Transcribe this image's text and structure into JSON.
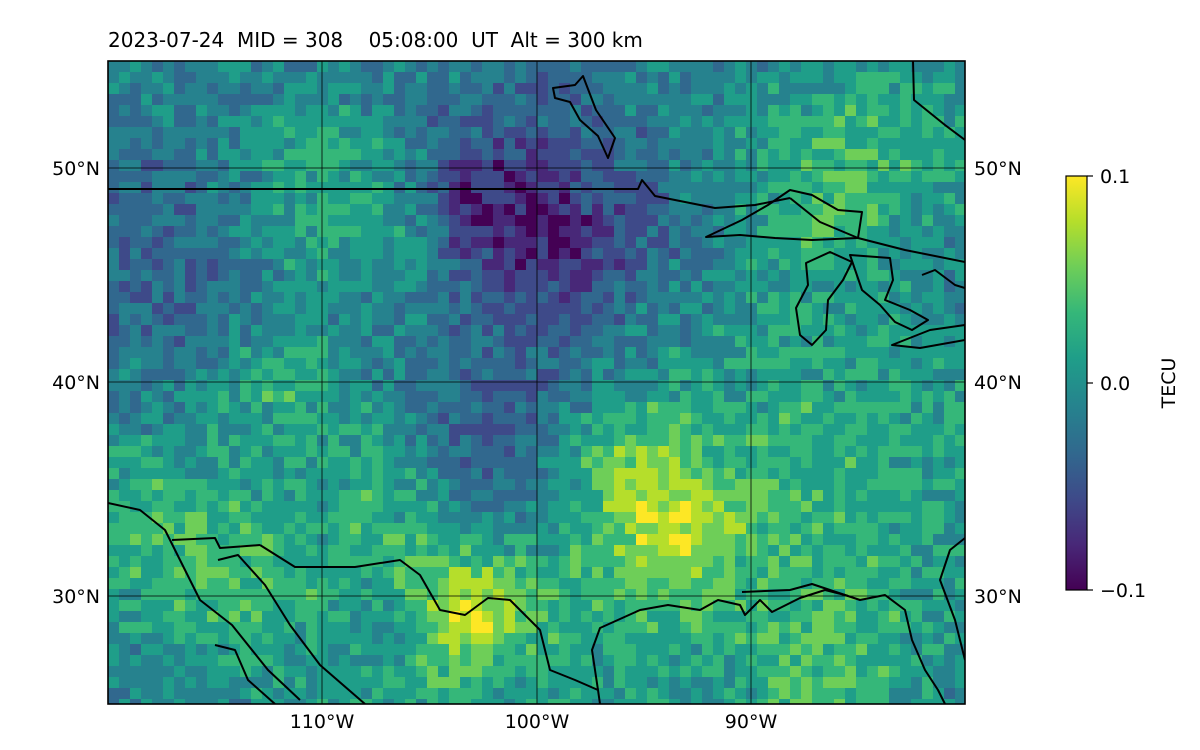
{
  "title": "2023-07-24  MID = 308    05:08:00  UT  Alt = 300 km",
  "map": {
    "lon_range": [
      -120,
      -80
    ],
    "lat_range": [
      25,
      55
    ],
    "gridlines": true,
    "lon_ticks": [
      {
        "value": -110,
        "label": "110°W"
      },
      {
        "value": -100,
        "label": "100°W"
      },
      {
        "value": -90,
        "label": "90°W"
      }
    ],
    "lat_ticks": [
      {
        "value": 50,
        "label": "50°N"
      },
      {
        "value": 40,
        "label": "40°N"
      },
      {
        "value": 30,
        "label": "30°N"
      }
    ],
    "field": "TEC perturbation (noisy raster, dominant value ≈ 0)",
    "features": [
      "coastlines",
      "US-Canada border",
      "Great Lakes",
      "Gulf of Mexico coast",
      "Gulf of California"
    ]
  },
  "colorbar": {
    "label": "TECU",
    "colormap": "viridis",
    "min": -0.1,
    "max": 0.1,
    "ticks": [
      {
        "value": 0.1,
        "label": "0.1"
      },
      {
        "value": 0.0,
        "label": "0.0"
      },
      {
        "value": -0.1,
        "label": "−0.1"
      }
    ],
    "colors": [
      "#440154",
      "#482878",
      "#3e4a89",
      "#31688e",
      "#26828e",
      "#1f9e89",
      "#35b779",
      "#6ece58",
      "#b5de2b",
      "#fde725"
    ]
  }
}
